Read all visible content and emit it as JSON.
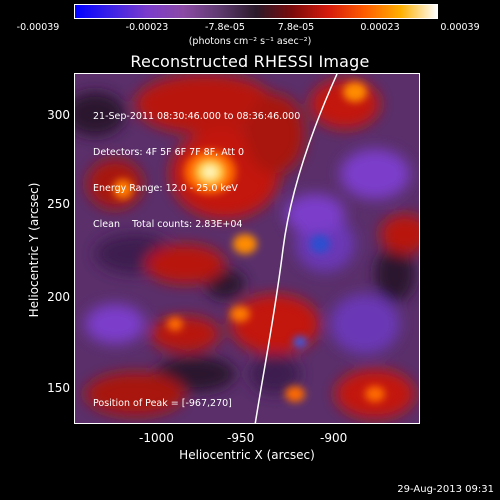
{
  "colorbar": {
    "ticks": [
      "-0.00039",
      "-0.00023",
      "-7.8e-05",
      "7.8e-05",
      "0.00023",
      "0.00039"
    ],
    "units": "(photons cm⁻² s⁻¹ asec⁻²)"
  },
  "title": "Reconstructed RHESSI Image",
  "info": {
    "time": "21-Sep-2011 08:30:46.000 to 08:36:46.000",
    "detectors": "Detectors: 4F 5F 6F 7F 8F, Att 0",
    "energy": "Energy Range: 12.0 - 25.0 keV",
    "clean": "Clean    Total counts: 2.83E+04",
    "peak": "Position of Peak = [-967,270]"
  },
  "axes": {
    "x_label": "Heliocentric X (arcsec)",
    "y_label": "Heliocentric Y (arcsec)",
    "x_ticks": [
      "-1000",
      "-950",
      "-900"
    ],
    "y_ticks": [
      "300",
      "250",
      "200",
      "150"
    ]
  },
  "footer": {
    "timestamp": "29-Aug-2013 09:31"
  }
}
